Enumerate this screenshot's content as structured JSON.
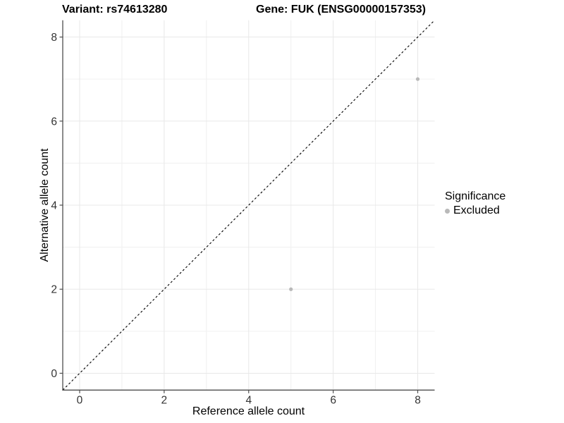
{
  "titles": {
    "variant": "Variant: rs74613280",
    "gene": "Gene: FUK (ENSG00000157353)"
  },
  "chart_data": {
    "type": "scatter",
    "title_left": "Variant: rs74613280",
    "title_right": "Gene: FUK (ENSG00000157353)",
    "xlabel": "Reference allele count",
    "ylabel": "Alternative allele count",
    "xlim": [
      -0.4,
      8.4
    ],
    "ylim": [
      -0.4,
      8.4
    ],
    "x_major_ticks": [
      0,
      2,
      4,
      6,
      8
    ],
    "y_major_ticks": [
      0,
      2,
      4,
      6,
      8
    ],
    "x_minor_ticks": [
      1,
      3,
      5,
      7
    ],
    "y_minor_ticks": [
      1,
      3,
      5,
      7
    ],
    "grid": true,
    "points": [
      {
        "x": 5,
        "y": 2,
        "significance": "Excluded"
      },
      {
        "x": 8,
        "y": 7,
        "significance": "Excluded"
      }
    ],
    "identity_line": {
      "type": "y=x",
      "style": "dashed",
      "from": -0.4,
      "to": 8.4
    },
    "legend": {
      "position": "right",
      "title": "Significance",
      "items": [
        {
          "label": "Excluded",
          "color": "#b9b9b9"
        }
      ]
    },
    "colors": {
      "point": "#b9b9b9",
      "grid_major": "#e8e8e8",
      "grid_minor": "#f0f0f0",
      "axis_line": "#4d4d4d",
      "tick_label": "#333333",
      "identity_line": "#000000"
    }
  }
}
